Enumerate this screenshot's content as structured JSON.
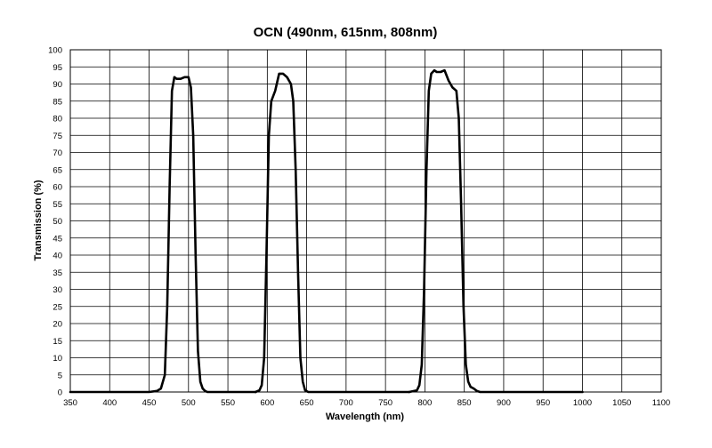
{
  "chart_data": {
    "type": "line",
    "title": "OCN (490nm, 615nm, 808nm)",
    "xlabel": "Wavelength (nm)",
    "ylabel": "Transmission (%)",
    "xlim": [
      350,
      1100
    ],
    "ylim": [
      0,
      100
    ],
    "xticks": [
      350,
      400,
      450,
      500,
      550,
      600,
      650,
      700,
      750,
      800,
      850,
      900,
      950,
      1000,
      1050,
      1100
    ],
    "yticks": [
      0,
      5,
      10,
      15,
      20,
      25,
      30,
      35,
      40,
      45,
      50,
      55,
      60,
      65,
      70,
      75,
      80,
      85,
      90,
      95,
      100
    ],
    "grid": true,
    "series": [
      {
        "x": [
          350,
          400,
          450,
          460,
          465,
          470,
          473,
          476,
          479,
          482,
          485,
          490,
          495,
          500,
          503,
          506,
          509,
          512,
          515,
          518,
          521,
          524,
          530,
          560,
          585
        ],
        "y": [
          0,
          0,
          0,
          0.3,
          1,
          5,
          25,
          60,
          88,
          92,
          91.5,
          91.5,
          92,
          92,
          89,
          75,
          40,
          12,
          3,
          1,
          0.3,
          0,
          0,
          0,
          0
        ]
      },
      {
        "x": [
          585,
          590,
          593,
          596,
          599,
          602,
          605,
          610,
          615,
          620,
          625,
          630,
          633,
          636,
          639,
          642,
          645,
          648,
          652,
          700,
          750,
          780
        ],
        "y": [
          0,
          0.5,
          2,
          10,
          40,
          75,
          85,
          88,
          93,
          93,
          92,
          90,
          85,
          65,
          35,
          10,
          3,
          0.5,
          0,
          0,
          0,
          0
        ]
      },
      {
        "x": [
          780,
          790,
          793,
          796,
          799,
          802,
          805,
          808,
          812,
          815,
          820,
          825,
          830,
          835,
          840,
          843,
          846,
          849,
          852,
          855,
          858,
          862,
          866,
          870,
          880,
          900,
          950,
          1000
        ],
        "y": [
          0,
          0.5,
          2,
          8,
          30,
          65,
          88,
          93,
          94,
          93.5,
          93.5,
          94,
          91,
          89,
          88,
          80,
          55,
          25,
          8,
          3,
          1.5,
          1,
          0.3,
          0,
          0,
          0,
          0,
          0
        ]
      }
    ]
  }
}
